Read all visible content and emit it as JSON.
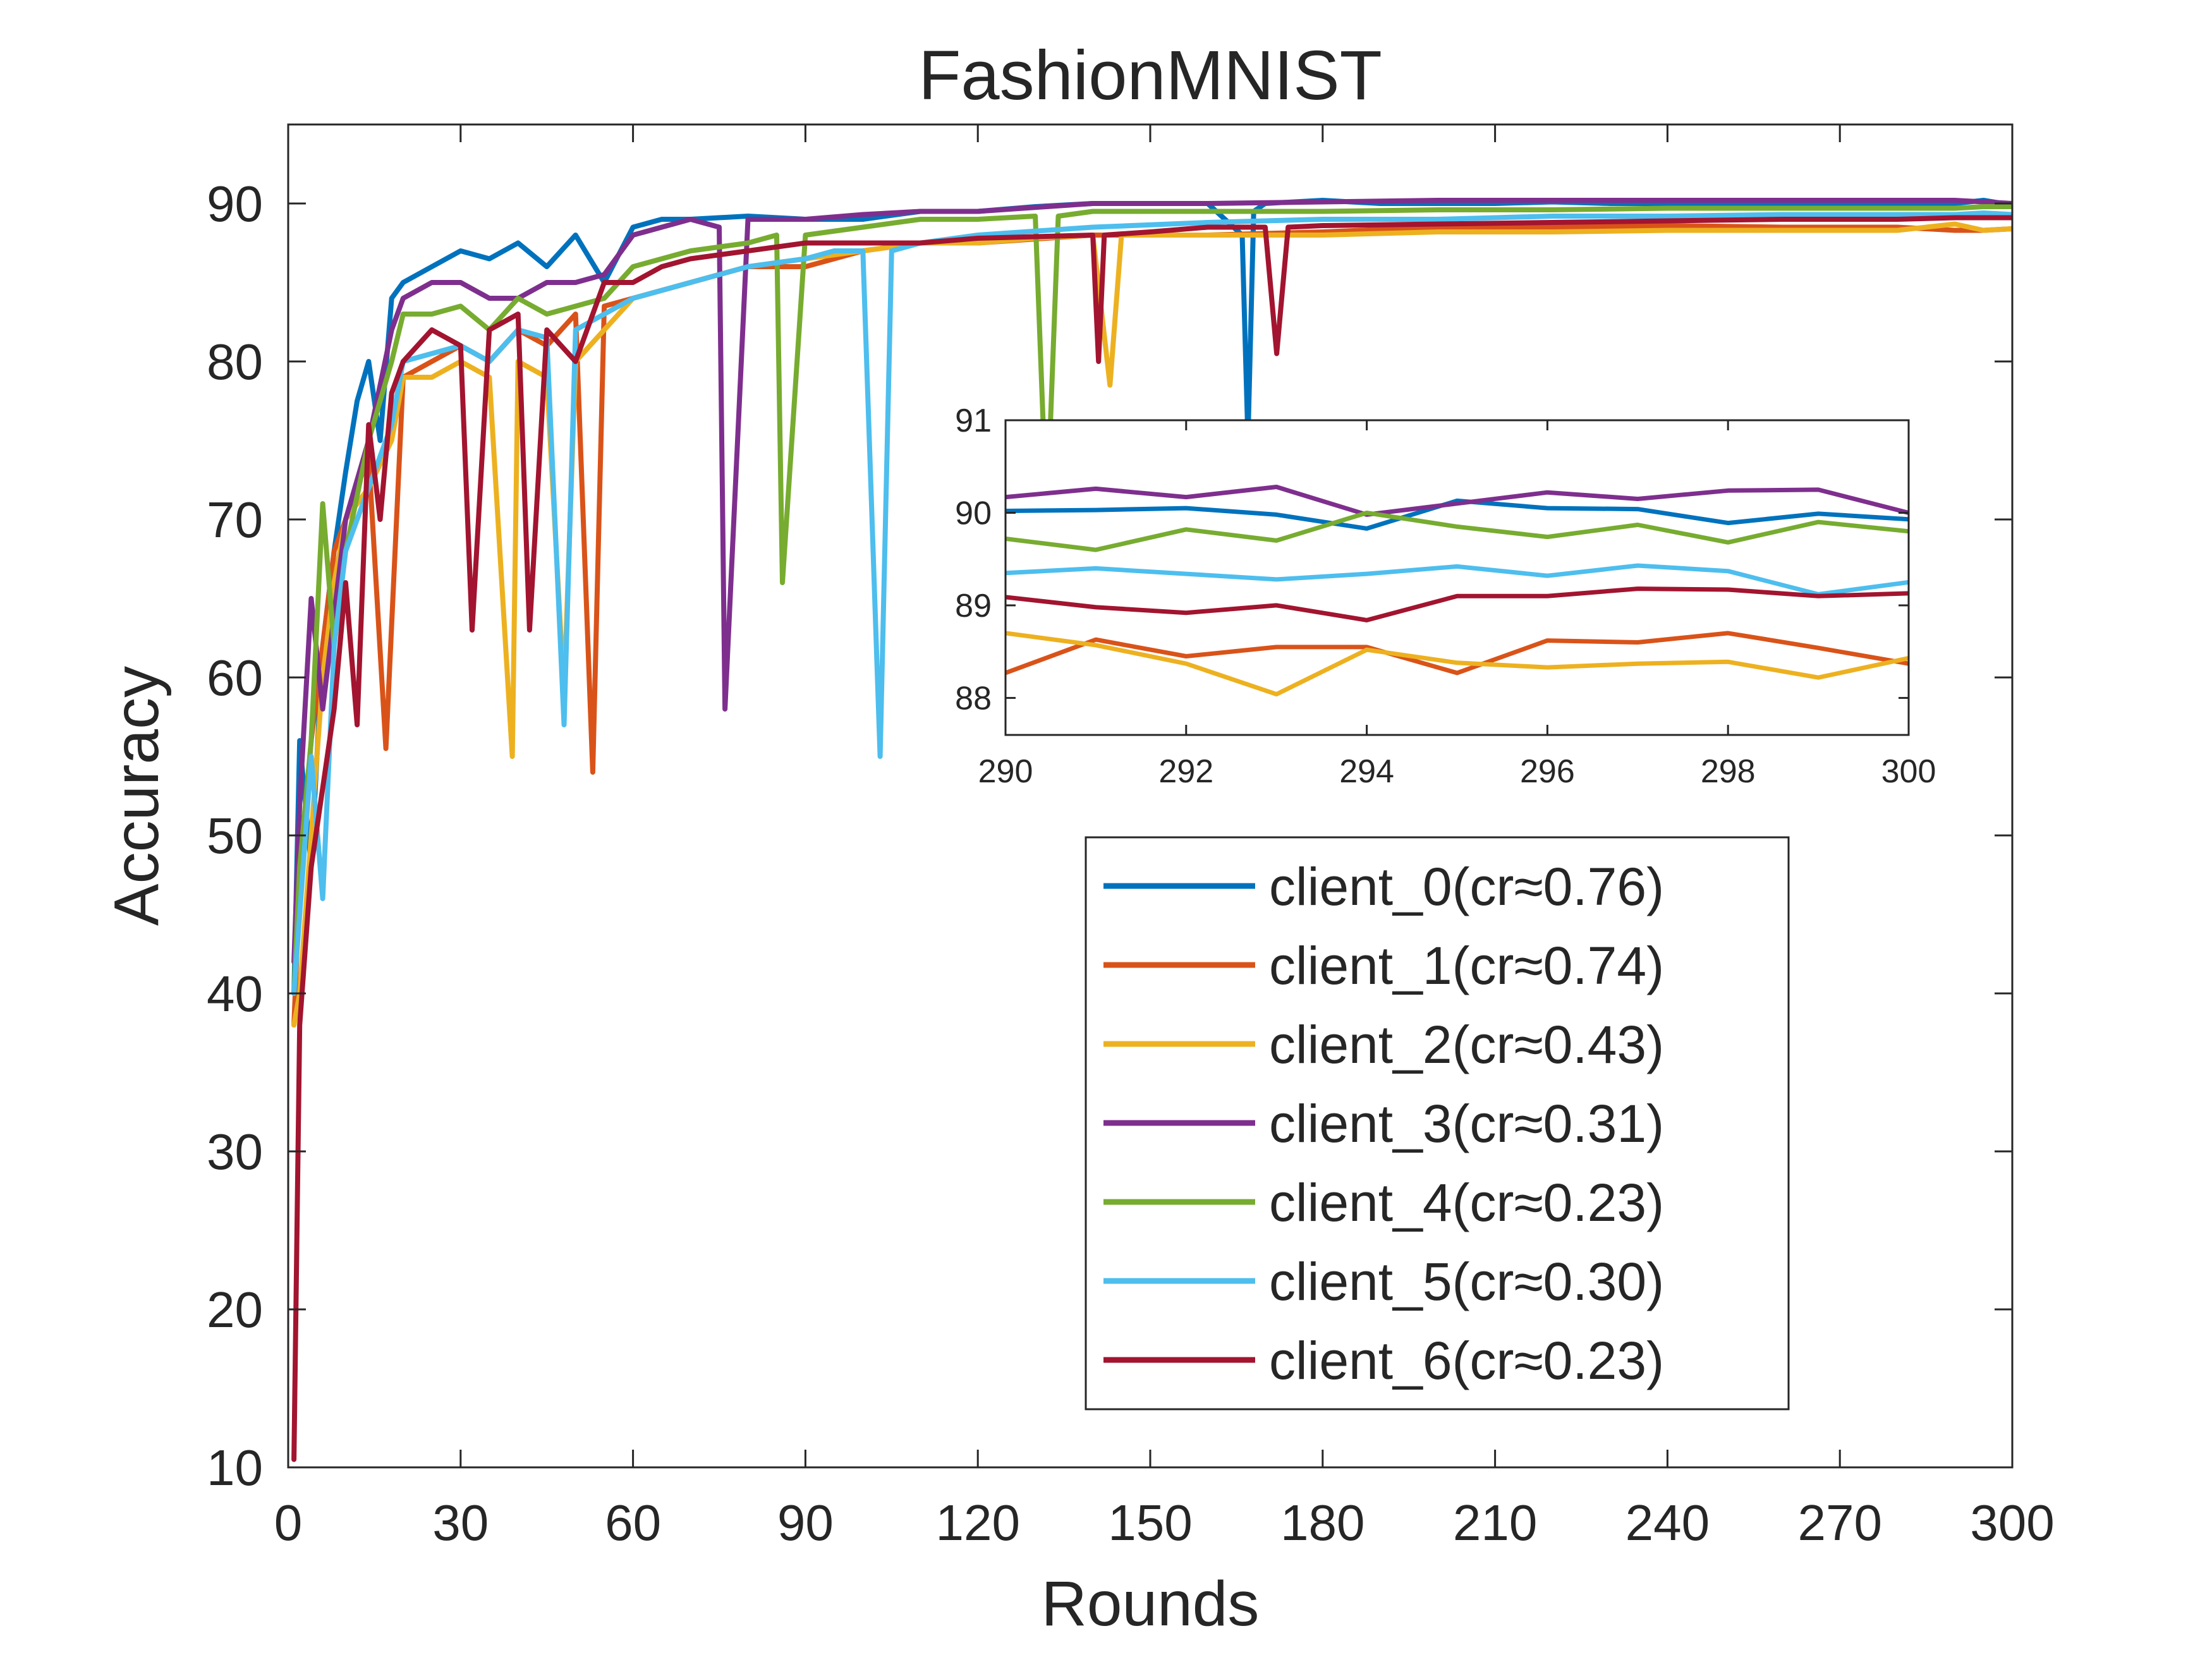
{
  "chart_data": [
    {
      "type": "line",
      "title": "FashionMNIST",
      "xlabel": "Rounds",
      "ylabel": "Accuracy",
      "xlim": [
        0,
        300
      ],
      "ylim": [
        10,
        95
      ],
      "xticks": [
        0,
        30,
        60,
        90,
        120,
        150,
        180,
        210,
        240,
        270,
        300
      ],
      "yticks": [
        10,
        20,
        30,
        40,
        50,
        60,
        70,
        80,
        90
      ],
      "grid": false,
      "legend_position": "lower-right",
      "series": [
        {
          "name": "client_0(cr≈0.76)",
          "color": "#0072BD",
          "x": [
            1,
            2,
            4,
            6,
            8,
            10,
            12,
            14,
            16,
            18,
            20,
            25,
            30,
            35,
            40,
            45,
            50,
            55,
            60,
            65,
            70,
            80,
            90,
            100,
            110,
            120,
            130,
            140,
            150,
            160,
            166,
            167,
            168,
            170,
            180,
            190,
            200,
            210,
            220,
            230,
            240,
            250,
            260,
            270,
            280,
            290,
            295,
            300
          ],
          "y": [
            40.0,
            56.0,
            48.0,
            62.0,
            68.0,
            73.0,
            77.5,
            80.0,
            75.0,
            84.0,
            85.0,
            86.0,
            87.0,
            86.5,
            87.5,
            86.0,
            88.0,
            85.0,
            88.5,
            89.0,
            89.0,
            89.2,
            89.0,
            89.0,
            89.5,
            89.5,
            89.8,
            90.0,
            90.0,
            90.0,
            88.0,
            75.0,
            89.5,
            90.0,
            90.2,
            90.0,
            90.0,
            90.0,
            90.1,
            90.0,
            90.0,
            90.0,
            90.0,
            90.0,
            90.0,
            90.0,
            90.2,
            89.9
          ]
        },
        {
          "name": "client_1(cr≈0.74)",
          "color": "#D95319",
          "x": [
            1,
            2,
            4,
            6,
            8,
            10,
            14,
            17,
            20,
            25,
            30,
            35,
            40,
            45,
            50,
            53,
            55,
            60,
            70,
            80,
            90,
            100,
            110,
            120,
            140,
            160,
            180,
            200,
            220,
            240,
            260,
            280,
            290,
            295,
            300
          ],
          "y": [
            38.0,
            47.0,
            56.0,
            62.0,
            68.0,
            70.0,
            74.0,
            55.5,
            79.0,
            80.0,
            81.0,
            80.0,
            82.0,
            81.0,
            83.0,
            54.0,
            83.5,
            84.0,
            85.0,
            86.0,
            86.0,
            87.0,
            87.5,
            87.5,
            88.0,
            88.0,
            88.2,
            88.5,
            88.5,
            88.6,
            88.5,
            88.5,
            88.3,
            88.3,
            88.4
          ]
        },
        {
          "name": "client_2(cr≈0.43)",
          "color": "#EDB120",
          "x": [
            1,
            2,
            4,
            6,
            8,
            10,
            14,
            18,
            20,
            25,
            30,
            35,
            39,
            40,
            45,
            48,
            50,
            55,
            60,
            70,
            80,
            90,
            100,
            110,
            120,
            130,
            140,
            143,
            145,
            150,
            160,
            170,
            180,
            200,
            220,
            240,
            260,
            280,
            290,
            295,
            300
          ],
          "y": [
            38.0,
            40.0,
            50.0,
            60.0,
            66.0,
            70.0,
            72.0,
            75.0,
            79.0,
            79.0,
            80.0,
            79.0,
            55.0,
            80.0,
            79.0,
            59.0,
            80.0,
            82.0,
            84.0,
            85.0,
            86.0,
            86.5,
            87.0,
            87.5,
            87.5,
            87.8,
            88.0,
            78.5,
            88.0,
            88.0,
            88.0,
            88.0,
            88.0,
            88.2,
            88.2,
            88.3,
            88.3,
            88.3,
            88.7,
            88.3,
            88.4
          ]
        },
        {
          "name": "client_3(cr≈0.31)",
          "color": "#7E2F8E",
          "x": [
            1,
            2,
            4,
            6,
            8,
            10,
            14,
            18,
            20,
            25,
            30,
            35,
            40,
            45,
            50,
            55,
            60,
            65,
            70,
            75,
            76,
            80,
            90,
            100,
            110,
            120,
            140,
            160,
            180,
            200,
            220,
            240,
            260,
            280,
            290,
            295,
            300
          ],
          "y": [
            42.0,
            52.0,
            65.0,
            58.0,
            64.0,
            70.0,
            75.0,
            82.0,
            84.0,
            85.0,
            85.0,
            84.0,
            84.0,
            85.0,
            85.0,
            85.5,
            88.0,
            88.5,
            89.0,
            88.5,
            58.0,
            89.0,
            89.0,
            89.3,
            89.5,
            89.5,
            90.0,
            90.0,
            90.1,
            90.2,
            90.2,
            90.2,
            90.2,
            90.2,
            90.2,
            90.1,
            90.0
          ]
        },
        {
          "name": "client_4(cr≈0.23)",
          "color": "#77AC30",
          "x": [
            1,
            2,
            4,
            6,
            8,
            10,
            14,
            18,
            20,
            25,
            30,
            35,
            40,
            45,
            50,
            55,
            60,
            70,
            80,
            85,
            86,
            90,
            100,
            110,
            120,
            130,
            132,
            134,
            140,
            160,
            180,
            200,
            220,
            240,
            260,
            280,
            290,
            295,
            300
          ],
          "y": [
            40.0,
            48.0,
            56.0,
            71.0,
            62.0,
            68.0,
            75.0,
            80.0,
            83.0,
            83.0,
            83.5,
            82.0,
            84.0,
            83.0,
            83.5,
            84.0,
            86.0,
            87.0,
            87.5,
            88.0,
            66.0,
            88.0,
            88.5,
            89.0,
            89.0,
            89.2,
            70.0,
            89.2,
            89.5,
            89.5,
            89.5,
            89.6,
            89.6,
            89.7,
            89.7,
            89.7,
            89.7,
            89.8,
            89.8
          ]
        },
        {
          "name": "client_5(cr≈0.30)",
          "color": "#4DBEEE",
          "x": [
            1,
            2,
            4,
            6,
            8,
            10,
            14,
            18,
            20,
            25,
            30,
            35,
            40,
            45,
            48,
            50,
            55,
            60,
            70,
            80,
            90,
            95,
            100,
            103,
            105,
            110,
            120,
            140,
            160,
            180,
            200,
            220,
            240,
            260,
            280,
            290,
            295,
            300
          ],
          "y": [
            40.0,
            45.0,
            55.0,
            46.0,
            62.0,
            68.0,
            72.0,
            76.0,
            80.0,
            80.5,
            81.0,
            80.0,
            82.0,
            81.5,
            57.0,
            82.0,
            83.0,
            84.0,
            85.0,
            86.0,
            86.5,
            87.0,
            87.0,
            55.0,
            87.0,
            87.5,
            88.0,
            88.5,
            88.8,
            89.0,
            89.0,
            89.2,
            89.2,
            89.3,
            89.3,
            89.3,
            89.4,
            89.3
          ]
        },
        {
          "name": "client_6(cr≈0.23)",
          "color": "#A2142F",
          "x": [
            1,
            2,
            4,
            6,
            8,
            10,
            12,
            14,
            16,
            18,
            20,
            25,
            30,
            32,
            35,
            40,
            42,
            45,
            50,
            55,
            60,
            65,
            70,
            80,
            90,
            100,
            110,
            120,
            140,
            141,
            142,
            150,
            160,
            170,
            172,
            174,
            180,
            200,
            220,
            240,
            260,
            280,
            290,
            295,
            300
          ],
          "y": [
            10.5,
            38.0,
            48.0,
            53.0,
            58.0,
            66.0,
            57.0,
            76.0,
            70.0,
            78.0,
            80.0,
            82.0,
            81.0,
            63.0,
            82.0,
            83.0,
            63.0,
            82.0,
            80.0,
            85.0,
            85.0,
            86.0,
            86.5,
            87.0,
            87.5,
            87.5,
            87.5,
            87.8,
            88.0,
            80.0,
            88.0,
            88.2,
            88.5,
            88.5,
            80.5,
            88.5,
            88.6,
            88.7,
            88.8,
            88.9,
            89.0,
            89.0,
            89.1,
            89.1,
            89.1
          ]
        }
      ]
    },
    {
      "type": "line",
      "title": "",
      "xlabel": "",
      "ylabel": "",
      "xlim": [
        290,
        300
      ],
      "ylim": [
        87.6,
        91
      ],
      "xticks": [
        290,
        292,
        294,
        296,
        298,
        300
      ],
      "yticks": [
        88,
        89,
        90,
        91
      ],
      "grid": false,
      "series": [
        {
          "name": "client_0(cr≈0.76)",
          "color": "#0072BD",
          "x": [
            290,
            291,
            292,
            293,
            294,
            295,
            296,
            297,
            298,
            299,
            300
          ],
          "y": [
            90.02,
            90.03,
            90.05,
            89.98,
            89.83,
            90.13,
            90.05,
            90.04,
            89.89,
            89.99,
            89.93
          ]
        },
        {
          "name": "client_1(cr≈0.74)",
          "color": "#D95319",
          "x": [
            290,
            291,
            292,
            293,
            294,
            295,
            296,
            297,
            298,
            299,
            300
          ],
          "y": [
            88.27,
            88.63,
            88.45,
            88.55,
            88.55,
            88.27,
            88.62,
            88.6,
            88.7,
            88.54,
            88.37
          ]
        },
        {
          "name": "client_2(cr≈0.43)",
          "color": "#EDB120",
          "x": [
            290,
            291,
            292,
            293,
            294,
            295,
            296,
            297,
            298,
            299,
            300
          ],
          "y": [
            88.7,
            88.57,
            88.37,
            88.04,
            88.52,
            88.38,
            88.33,
            88.37,
            88.39,
            88.22,
            88.43
          ]
        },
        {
          "name": "client_3(cr≈0.31)",
          "color": "#7E2F8E",
          "x": [
            290,
            291,
            292,
            293,
            294,
            295,
            296,
            297,
            298,
            299,
            300
          ],
          "y": [
            90.17,
            90.26,
            90.17,
            90.28,
            89.98,
            90.1,
            90.22,
            90.15,
            90.24,
            90.25,
            90.0
          ]
        },
        {
          "name": "client_4(cr≈0.23)",
          "color": "#77AC30",
          "x": [
            290,
            291,
            292,
            293,
            294,
            295,
            296,
            297,
            298,
            299,
            300
          ],
          "y": [
            89.72,
            89.6,
            89.82,
            89.7,
            90.0,
            89.85,
            89.74,
            89.87,
            89.68,
            89.9,
            89.8
          ]
        },
        {
          "name": "client_5(cr≈0.30)",
          "color": "#4DBEEE",
          "x": [
            290,
            291,
            292,
            293,
            294,
            295,
            296,
            297,
            298,
            299,
            300
          ],
          "y": [
            89.35,
            89.4,
            89.34,
            89.28,
            89.34,
            89.42,
            89.32,
            89.43,
            89.37,
            89.12,
            89.25
          ]
        },
        {
          "name": "client_6(cr≈0.23)",
          "color": "#A2142F",
          "x": [
            290,
            291,
            292,
            293,
            294,
            295,
            296,
            297,
            298,
            299,
            300
          ],
          "y": [
            89.09,
            88.98,
            88.92,
            89.0,
            88.84,
            89.1,
            89.1,
            89.18,
            89.17,
            89.1,
            89.13
          ]
        }
      ]
    }
  ]
}
